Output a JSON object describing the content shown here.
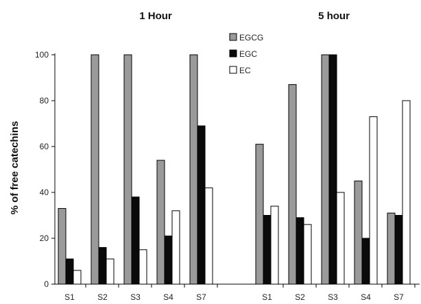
{
  "chart_data": {
    "type": "bar",
    "ylabel": "% of free catechins",
    "ylim": [
      0,
      100
    ],
    "yticks": [
      0,
      20,
      40,
      60,
      80,
      100
    ],
    "grid": false,
    "legend_position": "top-center",
    "series_colors": {
      "EGCG": "#9a9a9a",
      "EGC": "#0a0a0a",
      "EC": "#ffffff"
    },
    "series_names": [
      "EGCG",
      "EGC",
      "EC"
    ],
    "panels": [
      {
        "title": "1 Hour",
        "categories": [
          "S1",
          "S2",
          "S3",
          "S4",
          "S7"
        ],
        "series": [
          {
            "name": "EGCG",
            "values": [
              33,
              100,
              100,
              54,
              100
            ]
          },
          {
            "name": "EGC",
            "values": [
              11,
              16,
              38,
              21,
              69
            ]
          },
          {
            "name": "EC",
            "values": [
              6,
              11,
              15,
              32,
              42
            ]
          }
        ]
      },
      {
        "title": "5 hour",
        "categories": [
          "S1",
          "S2",
          "S3",
          "S4",
          "S7"
        ],
        "series": [
          {
            "name": "EGCG",
            "values": [
              61,
              87,
              100,
              45,
              31
            ]
          },
          {
            "name": "EGC",
            "values": [
              30,
              29,
              100,
              20,
              30
            ]
          },
          {
            "name": "EC",
            "values": [
              34,
              26,
              40,
              73,
              80
            ]
          }
        ]
      }
    ]
  }
}
